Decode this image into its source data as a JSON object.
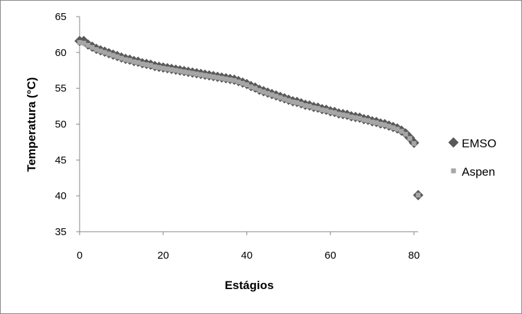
{
  "chart_data": {
    "type": "scatter",
    "title": "",
    "xlabel": "Estágios",
    "ylabel": "Temperatura (°C)",
    "xlim": [
      0,
      81
    ],
    "ylim": [
      35,
      65
    ],
    "xticks": [
      0,
      20,
      40,
      60,
      80
    ],
    "yticks": [
      35,
      40,
      45,
      50,
      55,
      60,
      65
    ],
    "grid": false,
    "legend_position": "right",
    "series": [
      {
        "name": "EMSO",
        "marker": "diamond",
        "color": "#595959",
        "points": [
          [
            0,
            61.6
          ],
          [
            1,
            61.6
          ],
          [
            2,
            61.1
          ],
          [
            3,
            60.8
          ],
          [
            4,
            60.5
          ],
          [
            5,
            60.3
          ],
          [
            6,
            60.1
          ],
          [
            7,
            59.9
          ],
          [
            8,
            59.7
          ],
          [
            9,
            59.5
          ],
          [
            10,
            59.3
          ],
          [
            11,
            59.1
          ],
          [
            12,
            59.0
          ],
          [
            13,
            58.8
          ],
          [
            14,
            58.7
          ],
          [
            15,
            58.5
          ],
          [
            16,
            58.4
          ],
          [
            17,
            58.3
          ],
          [
            18,
            58.1
          ],
          [
            19,
            58.0
          ],
          [
            20,
            57.9
          ],
          [
            21,
            57.8
          ],
          [
            22,
            57.7
          ],
          [
            23,
            57.6
          ],
          [
            24,
            57.5
          ],
          [
            25,
            57.4
          ],
          [
            26,
            57.3
          ],
          [
            27,
            57.2
          ],
          [
            28,
            57.1
          ],
          [
            29,
            57.0
          ],
          [
            30,
            56.9
          ],
          [
            31,
            56.8
          ],
          [
            32,
            56.7
          ],
          [
            33,
            56.6
          ],
          [
            34,
            56.5
          ],
          [
            35,
            56.4
          ],
          [
            36,
            56.3
          ],
          [
            37,
            56.2
          ],
          [
            38,
            56.0
          ],
          [
            39,
            55.8
          ],
          [
            40,
            55.6
          ],
          [
            41,
            55.3
          ],
          [
            42,
            55.1
          ],
          [
            43,
            54.8
          ],
          [
            44,
            54.6
          ],
          [
            45,
            54.4
          ],
          [
            46,
            54.2
          ],
          [
            47,
            54.0
          ],
          [
            48,
            53.8
          ],
          [
            49,
            53.6
          ],
          [
            50,
            53.4
          ],
          [
            51,
            53.2
          ],
          [
            52,
            53.1
          ],
          [
            53,
            52.9
          ],
          [
            54,
            52.7
          ],
          [
            55,
            52.6
          ],
          [
            56,
            52.4
          ],
          [
            57,
            52.3
          ],
          [
            58,
            52.1
          ],
          [
            59,
            52.0
          ],
          [
            60,
            51.8
          ],
          [
            61,
            51.7
          ],
          [
            62,
            51.5
          ],
          [
            63,
            51.4
          ],
          [
            64,
            51.3
          ],
          [
            65,
            51.1
          ],
          [
            66,
            51.0
          ],
          [
            67,
            50.9
          ],
          [
            68,
            50.7
          ],
          [
            69,
            50.6
          ],
          [
            70,
            50.4
          ],
          [
            71,
            50.3
          ],
          [
            72,
            50.1
          ],
          [
            73,
            50.0
          ],
          [
            74,
            49.8
          ],
          [
            75,
            49.6
          ],
          [
            76,
            49.4
          ],
          [
            77,
            49.1
          ],
          [
            78,
            48.7
          ],
          [
            79,
            48.1
          ],
          [
            80,
            47.4
          ],
          [
            81,
            40.1
          ]
        ]
      },
      {
        "name": "Aspen",
        "marker": "square",
        "color": "#a6a6a6",
        "points": [
          [
            0,
            61.4
          ],
          [
            1,
            61.3
          ],
          [
            2,
            61.0
          ],
          [
            3,
            60.7
          ],
          [
            4,
            60.4
          ],
          [
            5,
            60.2
          ],
          [
            6,
            60.0
          ],
          [
            7,
            59.8
          ],
          [
            8,
            59.6
          ],
          [
            9,
            59.4
          ],
          [
            10,
            59.2
          ],
          [
            11,
            59.0
          ],
          [
            12,
            58.9
          ],
          [
            13,
            58.7
          ],
          [
            14,
            58.6
          ],
          [
            15,
            58.4
          ],
          [
            16,
            58.3
          ],
          [
            17,
            58.2
          ],
          [
            18,
            58.0
          ],
          [
            19,
            57.9
          ],
          [
            20,
            57.8
          ],
          [
            21,
            57.7
          ],
          [
            22,
            57.6
          ],
          [
            23,
            57.5
          ],
          [
            24,
            57.4
          ],
          [
            25,
            57.3
          ],
          [
            26,
            57.2
          ],
          [
            27,
            57.1
          ],
          [
            28,
            57.0
          ],
          [
            29,
            56.9
          ],
          [
            30,
            56.8
          ],
          [
            31,
            56.7
          ],
          [
            32,
            56.6
          ],
          [
            33,
            56.5
          ],
          [
            34,
            56.4
          ],
          [
            35,
            56.3
          ],
          [
            36,
            56.2
          ],
          [
            37,
            56.1
          ],
          [
            38,
            55.9
          ],
          [
            39,
            55.7
          ],
          [
            40,
            55.5
          ],
          [
            41,
            55.2
          ],
          [
            42,
            55.0
          ],
          [
            43,
            54.7
          ],
          [
            44,
            54.5
          ],
          [
            45,
            54.3
          ],
          [
            46,
            54.1
          ],
          [
            47,
            53.9
          ],
          [
            48,
            53.7
          ],
          [
            49,
            53.5
          ],
          [
            50,
            53.3
          ],
          [
            51,
            53.1
          ],
          [
            52,
            53.0
          ],
          [
            53,
            52.8
          ],
          [
            54,
            52.6
          ],
          [
            55,
            52.5
          ],
          [
            56,
            52.3
          ],
          [
            57,
            52.2
          ],
          [
            58,
            52.0
          ],
          [
            59,
            51.9
          ],
          [
            60,
            51.7
          ],
          [
            61,
            51.6
          ],
          [
            62,
            51.4
          ],
          [
            63,
            51.3
          ],
          [
            64,
            51.2
          ],
          [
            65,
            51.0
          ],
          [
            66,
            50.9
          ],
          [
            67,
            50.8
          ],
          [
            68,
            50.6
          ],
          [
            69,
            50.5
          ],
          [
            70,
            50.3
          ],
          [
            71,
            50.2
          ],
          [
            72,
            50.0
          ],
          [
            73,
            49.9
          ],
          [
            74,
            49.7
          ],
          [
            75,
            49.5
          ],
          [
            76,
            49.3
          ],
          [
            77,
            49.0
          ],
          [
            78,
            48.6
          ],
          [
            79,
            48.0
          ],
          [
            80,
            47.3
          ],
          [
            81,
            40.1
          ]
        ]
      }
    ]
  }
}
